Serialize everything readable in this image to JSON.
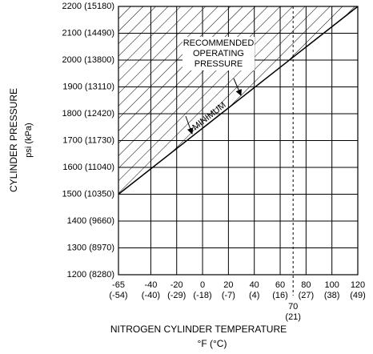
{
  "chart_data": {
    "type": "line",
    "ylabel": "CYLINDER PRESSURE",
    "ylabel_units": "psi (kPa)",
    "xlabel": "NITROGEN CYLINDER TEMPERATURE",
    "xlabel_units": "°F (°C)",
    "x": [
      -65,
      120
    ],
    "series": [
      {
        "name": "MINIMUM",
        "color": "#000000",
        "values": [
          1500,
          2200
        ]
      }
    ],
    "annotation": [
      "RECOMMENDED",
      "OPERATING",
      "PRESSURE"
    ],
    "xlim": [
      -65,
      120
    ],
    "xticks": [
      -65,
      -40,
      -20,
      0,
      20,
      40,
      60,
      80,
      100,
      120
    ],
    "xticks_celsius": [
      "(-54)",
      "(-40)",
      "(-29)",
      "(-18)",
      "(-7)",
      "(4)",
      "(16)",
      "(27)",
      "(38)",
      "(49)"
    ],
    "reference_line": {
      "x": 70,
      "celsius": "(21)"
    },
    "ylim": [
      1200,
      2200
    ],
    "yticks": [
      {
        "value": 1200,
        "label": "1200 (8280)"
      },
      {
        "value": 1300,
        "label": "1300 (8970)"
      },
      {
        "value": 1400,
        "label": "1400 (9660)"
      },
      {
        "value": 1500,
        "label": "1500 (10350)"
      },
      {
        "value": 1600,
        "label": "1600 (11040)"
      },
      {
        "value": 1700,
        "label": "1700 (11730)"
      },
      {
        "value": 1800,
        "label": "1800 (12420)"
      },
      {
        "value": 1900,
        "label": "1900 (13110)"
      },
      {
        "value": 2000,
        "label": "2000 (13800)"
      },
      {
        "value": 2100,
        "label": "2100 (14490)"
      },
      {
        "value": 2200,
        "label": "2200 (15180)"
      }
    ],
    "grid": true,
    "hatch_above_line": true
  }
}
